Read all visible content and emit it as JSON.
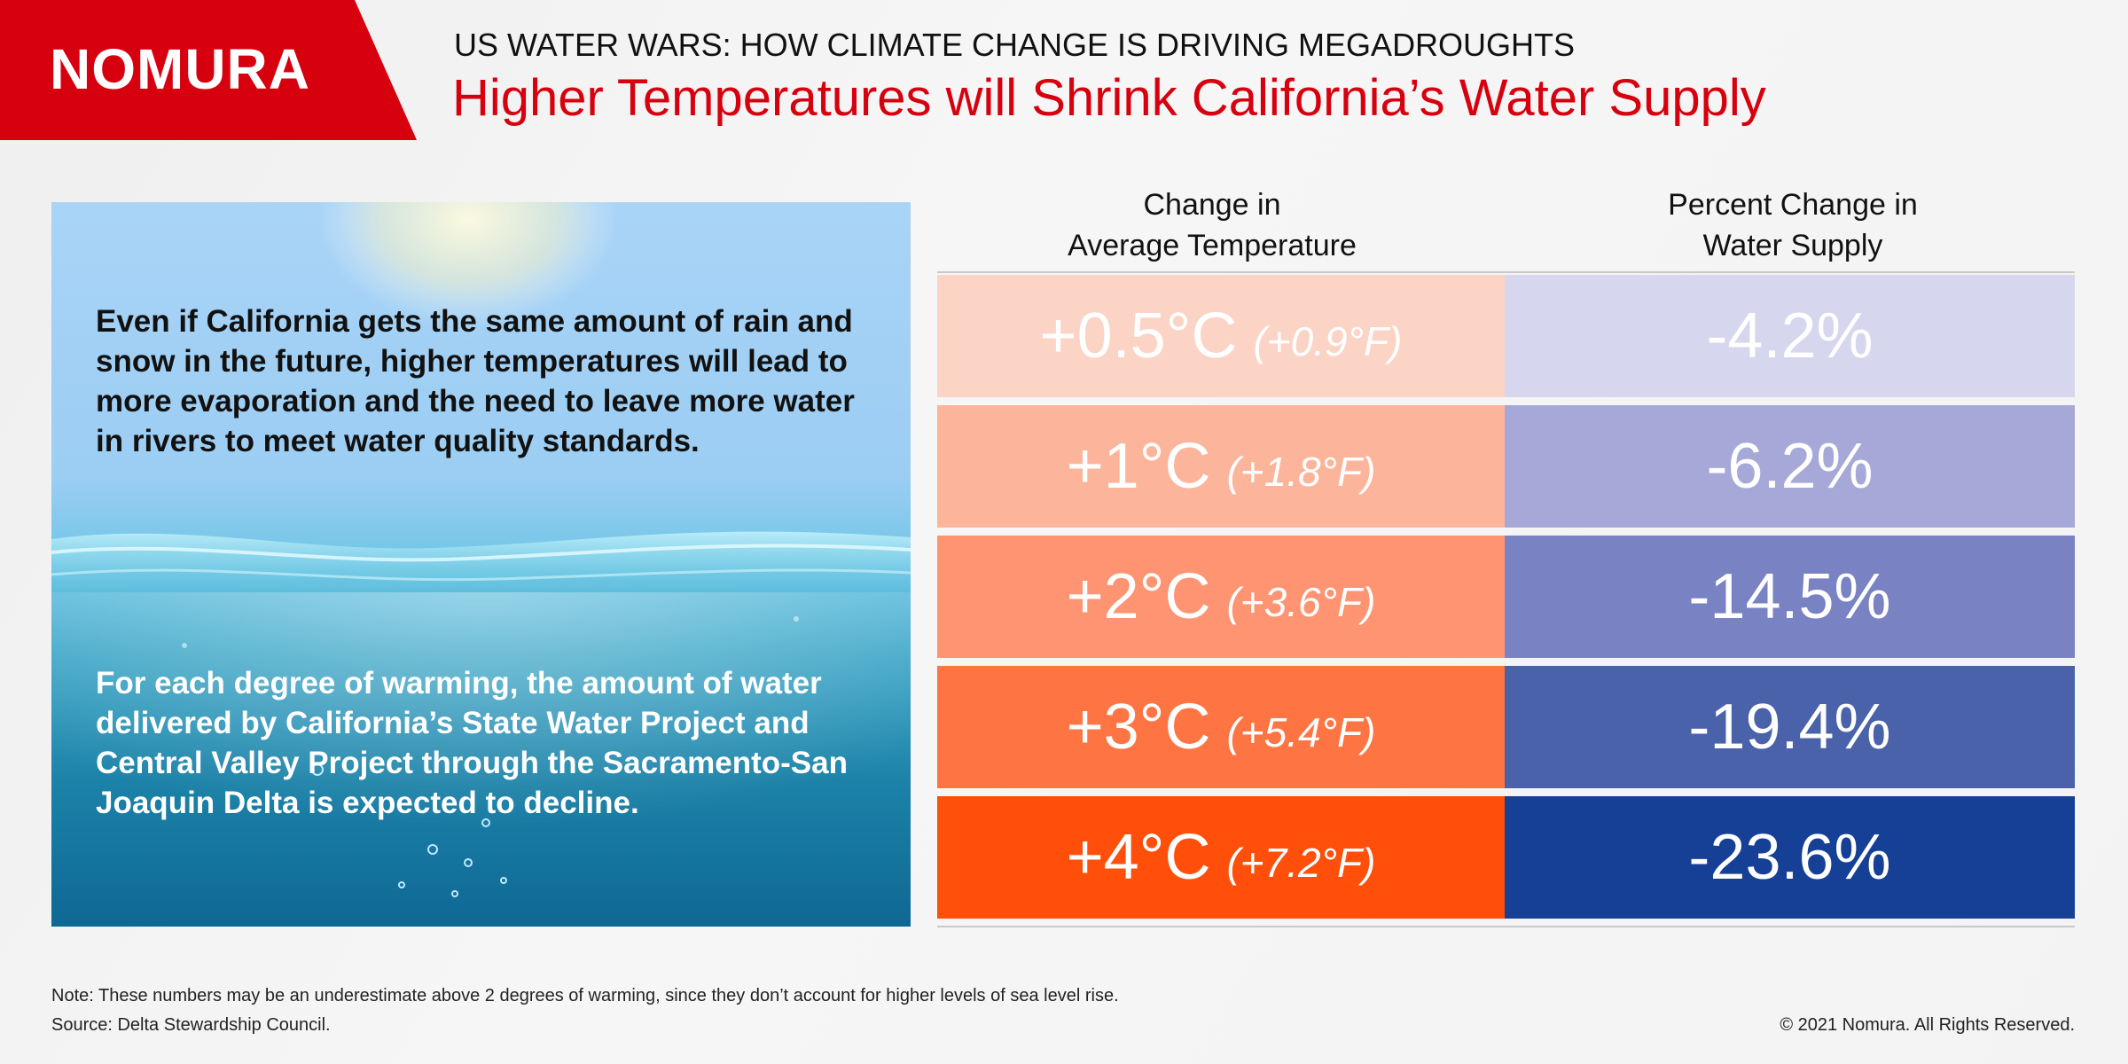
{
  "brand": {
    "logo_text": "NOMURA",
    "color": "#d7000f"
  },
  "header": {
    "kicker": "US WATER WARS: HOW CLIMATE CHANGE IS DRIVING MEGADROUGHTS",
    "headline": "Higher Temperatures will Shrink California’s Water Supply"
  },
  "photo_panel": {
    "text_top": "Even if California gets the same amount of rain and snow in the future, higher temperatures will lead to more evaporation and the need to leave more water in rivers to meet water quality standards.",
    "text_bottom": "For each degree of warming, the amount of water delivered by California’s State Water Project and Central Valley Project through the Sacramento-San Joaquin Delta is expected to decline."
  },
  "table": {
    "col_temp_line1": "Change in",
    "col_temp_line2": "Average Temperature",
    "col_pct_line1": "Percent Change in",
    "col_pct_line2": "Water Supply",
    "rows": [
      {
        "temp_c": "+0.5°C",
        "temp_f": "(+0.9°F)",
        "pct": "-4.2%",
        "temp_color": "#fbd4c6",
        "pct_color": "#d6d6ee"
      },
      {
        "temp_c": "+1°C",
        "temp_f": "(+1.8°F)",
        "pct": "-6.2%",
        "temp_color": "#fcb59b",
        "pct_color": "#a6a8d8"
      },
      {
        "temp_c": "+2°C",
        "temp_f": "(+3.6°F)",
        "pct": "-14.5%",
        "temp_color": "#fe9471",
        "pct_color": "#7982c2"
      },
      {
        "temp_c": "+3°C",
        "temp_f": "(+5.4°F)",
        "pct": "-19.4%",
        "temp_color": "#ff7443",
        "pct_color": "#4a62aa"
      },
      {
        "temp_c": "+4°C",
        "temp_f": "(+7.2°F)",
        "pct": "-23.6%",
        "temp_color": "#ff4f0b",
        "pct_color": "#163f96"
      }
    ]
  },
  "footer": {
    "note": "Note: These numbers may be an underestimate above 2 degrees of warming, since they don’t account for higher levels of sea level rise.",
    "source": "Source: Delta Stewardship Council.",
    "copyright": "© 2021 Nomura. All Rights Reserved."
  }
}
